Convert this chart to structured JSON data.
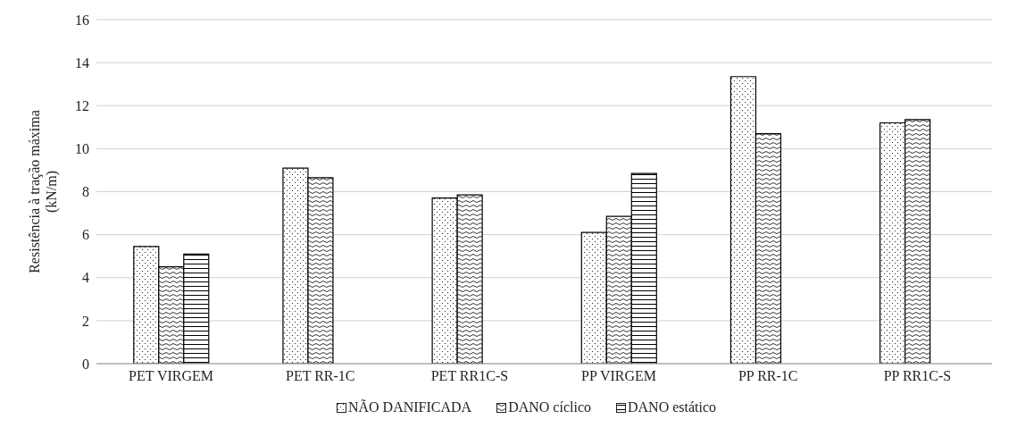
{
  "chart_data": {
    "type": "bar",
    "ylabel": "Resistência à tração  máxima\n(kN/m)",
    "categories": [
      "PET VIRGEM",
      "PET RR-1C",
      "PET RR1C-S",
      "PP VIRGEM",
      "PP RR-1C",
      "PP RR1C-S"
    ],
    "series": [
      {
        "name": "NÃO DANIFICADA",
        "color": "#000000",
        "values": [
          5.45,
          9.1,
          7.7,
          6.1,
          13.35,
          11.2
        ]
      },
      {
        "name": "DANO cíclico",
        "color": "#000000",
        "values": [
          4.5,
          8.65,
          7.85,
          6.85,
          10.7,
          11.35
        ]
      },
      {
        "name": "DANO estático",
        "color": "#000000",
        "values": [
          5.1,
          null,
          null,
          8.85,
          null,
          null
        ]
      }
    ],
    "ylim": [
      0,
      16
    ],
    "yticks": [
      0,
      2,
      4,
      6,
      8,
      10,
      12,
      14,
      16
    ],
    "grid": "y",
    "legend": "bottom"
  }
}
